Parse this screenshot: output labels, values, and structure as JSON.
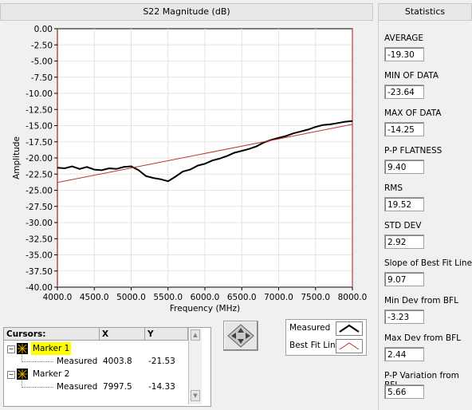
{
  "graph": {
    "title": "S22 Magnitude (dB)"
  },
  "stats": {
    "title": "Statistics",
    "items": [
      {
        "label": "AVERAGE",
        "value": "-19.30"
      },
      {
        "label": "MIN OF DATA",
        "value": "-23.64"
      },
      {
        "label": "MAX OF DATA",
        "value": "-14.25"
      },
      {
        "label": "P-P FLATNESS",
        "value": "9.40"
      },
      {
        "label": "RMS",
        "value": "19.52"
      },
      {
        "label": "STD DEV",
        "value": "2.92"
      },
      {
        "label": "Slope of Best Fit Line",
        "value": "9.07"
      },
      {
        "label": "Min Dev from BFL",
        "value": "-3.23"
      },
      {
        "label": "Max Dev from BFL",
        "value": "2.44"
      },
      {
        "label": "P-P Variation from BFL",
        "value": "5.66"
      }
    ]
  },
  "cursors": {
    "header": "Cursors:",
    "col_x": "X",
    "col_y": "Y",
    "rows": [
      {
        "marker": "Marker 1",
        "sub": "Measured",
        "x": "4003.8",
        "y": "-21.53"
      },
      {
        "marker": "Marker 2",
        "sub": "Measured",
        "x": "7997.5",
        "y": "-14.33"
      }
    ]
  },
  "legend": {
    "measured": "Measured",
    "bestfit": "Best Fit Line"
  },
  "colors": {
    "measured": "#000000",
    "bestfit": "#c03030",
    "marker_highlight": "#ffff00"
  },
  "chart_data": {
    "type": "line",
    "title": "S22 Magnitude (dB)",
    "xlabel": "Frequency (MHz)",
    "ylabel": "Amplitude",
    "xlim": [
      4000,
      8000
    ],
    "ylim": [
      -40,
      0
    ],
    "xticks": [
      "4000.0",
      "4500.0",
      "5000.0",
      "5500.0",
      "6000.0",
      "6500.0",
      "7000.0",
      "7500.0",
      "8000.0"
    ],
    "yticks": [
      "0.00",
      "-2.50",
      "-5.00",
      "-7.50",
      "-10.00",
      "-12.50",
      "-15.00",
      "-17.50",
      "-20.00",
      "-22.50",
      "-25.00",
      "-27.50",
      "-30.00",
      "-32.50",
      "-35.00",
      "-37.50",
      "-40.00"
    ],
    "series": [
      {
        "name": "Measured",
        "x": [
          4000,
          4100,
          4200,
          4300,
          4400,
          4500,
          4600,
          4700,
          4800,
          4900,
          5000,
          5100,
          5200,
          5300,
          5400,
          5500,
          5600,
          5700,
          5800,
          5900,
          6000,
          6100,
          6200,
          6300,
          6400,
          6500,
          6600,
          6700,
          6800,
          6900,
          7000,
          7100,
          7200,
          7300,
          7400,
          7500,
          7600,
          7700,
          7800,
          7900,
          8000
        ],
        "y": [
          -21.5,
          -21.6,
          -21.3,
          -21.7,
          -21.4,
          -21.8,
          -21.9,
          -21.6,
          -21.7,
          -21.4,
          -21.3,
          -21.9,
          -22.8,
          -23.1,
          -23.3,
          -23.6,
          -22.9,
          -22.1,
          -21.8,
          -21.2,
          -20.9,
          -20.4,
          -20.1,
          -19.7,
          -19.2,
          -18.9,
          -18.6,
          -18.2,
          -17.6,
          -17.2,
          -16.9,
          -16.6,
          -16.2,
          -15.9,
          -15.6,
          -15.2,
          -14.9,
          -14.8,
          -14.6,
          -14.4,
          -14.3
        ]
      },
      {
        "name": "Best Fit Line",
        "x": [
          4000,
          8000
        ],
        "y": [
          -23.8,
          -14.8
        ]
      }
    ]
  }
}
